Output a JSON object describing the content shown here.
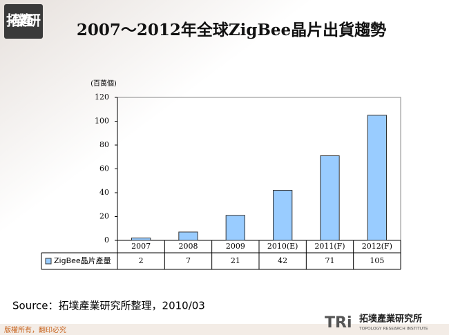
{
  "logo": "拓墣產研",
  "chart_data": {
    "type": "bar",
    "title": "2007～2012年全球ZigBee晶片出貨趨勢",
    "y_label": "(百萬個)",
    "categories": [
      "2007",
      "2008",
      "2009",
      "2010(E)",
      "2011(F)",
      "2012(F)"
    ],
    "series": [
      {
        "name": "ZigBee晶片產量",
        "color": "#99ccff",
        "values": [
          2,
          7,
          21,
          42,
          71,
          105
        ]
      }
    ],
    "ylim": [
      0,
      120
    ],
    "yticks": [
      0,
      20,
      40,
      60,
      80,
      100,
      120
    ],
    "grid": false
  },
  "source": "Source：拓墣產業研究所整理，2010/03",
  "footer": "版權所有，翻印必究",
  "brand": {
    "mark": "TRi",
    "name": "拓墣產業研究所",
    "english": "TOPOLOGY RESEARCH INSTITUTE"
  }
}
